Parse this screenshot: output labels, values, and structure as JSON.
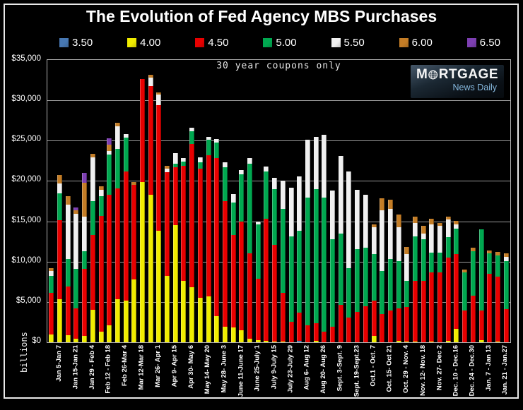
{
  "header": {
    "title": "The Evolution of Fed Agency MBS Purchases"
  },
  "plot": {
    "annotation": "30 year coupons only",
    "ylabel": "billions"
  },
  "logo": {
    "word_pre": "M",
    "word_post": "RTGAGE",
    "subtitle": "News Daily"
  },
  "chart_data": {
    "type": "bar",
    "stacked": true,
    "title": "The Evolution of Fed Agency MBS Purchases",
    "annotation": "30 year coupons only",
    "ylabel": "billions",
    "ylim": [
      0,
      35000
    ],
    "ytick_step": 5000,
    "ytick_labels": [
      "$0",
      "$5,000",
      "$10,000",
      "$15,000",
      "$20,000",
      "$25,000",
      "$30,000",
      "$35,000"
    ],
    "grid": "horizontal",
    "legend_position": "top",
    "series_keys": [
      "3.50",
      "4.00",
      "4.50",
      "5.00",
      "5.50",
      "6.00",
      "6.50"
    ],
    "series_colors": [
      "#4778b3",
      "#f0ec00",
      "#e80000",
      "#00a850",
      "#f0f0f0",
      "#c47d26",
      "#7d3fb2"
    ],
    "bars": [
      {
        "label": "Jan 5-Jan 7",
        "values": [
          0,
          1000,
          5100,
          2100,
          600,
          400,
          0
        ]
      },
      {
        "label": "",
        "values": [
          0,
          5300,
          9800,
          3400,
          1200,
          1000,
          0
        ]
      },
      {
        "label": "Jan 15-Jan 21",
        "values": [
          0,
          900,
          6000,
          3400,
          6800,
          1000,
          0
        ]
      },
      {
        "label": "",
        "values": [
          0,
          400,
          3800,
          4900,
          6800,
          450,
          400
        ]
      },
      {
        "label": "Jan 29 - Feb 4",
        "values": [
          0,
          800,
          8300,
          2200,
          4300,
          4200,
          1200
        ]
      },
      {
        "label": "",
        "values": [
          0,
          4000,
          9300,
          4200,
          5400,
          500,
          0
        ]
      },
      {
        "label": "Feb 12 - Feb 18",
        "values": [
          0,
          1300,
          14400,
          2400,
          800,
          400,
          0
        ]
      },
      {
        "label": "",
        "values": [
          0,
          2100,
          16200,
          5000,
          400,
          800,
          800
        ]
      },
      {
        "label": "Feb 26-Mar 4",
        "values": [
          0,
          5300,
          13800,
          4900,
          2800,
          400,
          0
        ]
      },
      {
        "label": "",
        "values": [
          0,
          5200,
          16000,
          4200,
          450,
          0,
          0
        ]
      },
      {
        "label": "Mar 12-Mar 18",
        "values": [
          0,
          7800,
          11700,
          0,
          0,
          400,
          0
        ]
      },
      {
        "label": "",
        "values": [
          0,
          19900,
          12700,
          0,
          0,
          0,
          0
        ]
      },
      {
        "label": "Mar 26- Apr 1",
        "values": [
          0,
          18300,
          13500,
          0,
          1000,
          350,
          0
        ]
      },
      {
        "label": "",
        "values": [
          0,
          13800,
          15600,
          0,
          1300,
          300,
          0
        ]
      },
      {
        "label": "Apr 9- Apr 15",
        "values": [
          0,
          8200,
          12900,
          0,
          400,
          400,
          0
        ]
      },
      {
        "label": "",
        "values": [
          0,
          14500,
          7200,
          400,
          1350,
          0,
          0
        ]
      },
      {
        "label": "Apr 30- May 6",
        "values": [
          0,
          7600,
          14300,
          500,
          400,
          0,
          0
        ]
      },
      {
        "label": "",
        "values": [
          0,
          6800,
          17800,
          1600,
          400,
          0,
          0
        ]
      },
      {
        "label": "May 14- May 20",
        "values": [
          0,
          5500,
          16000,
          800,
          600,
          0,
          0
        ]
      },
      {
        "label": "",
        "values": [
          0,
          5700,
          17500,
          1900,
          400,
          0,
          0
        ]
      },
      {
        "label": "May 28- June 3",
        "values": [
          0,
          3200,
          19600,
          2000,
          400,
          0,
          0
        ]
      },
      {
        "label": "",
        "values": [
          0,
          1900,
          15600,
          4200,
          650,
          0,
          0
        ]
      },
      {
        "label": "June 11-June 17",
        "values": [
          0,
          1800,
          11500,
          4000,
          1100,
          0,
          0
        ]
      },
      {
        "label": "",
        "values": [
          0,
          1500,
          13500,
          5850,
          500,
          0,
          0
        ]
      },
      {
        "label": "June 25-July 1",
        "values": [
          0,
          400,
          10600,
          11150,
          650,
          0,
          0
        ]
      },
      {
        "label": "",
        "values": [
          0,
          250,
          7600,
          6800,
          350,
          0,
          0
        ]
      },
      {
        "label": "July 9-July 15",
        "values": [
          0,
          200,
          15100,
          5900,
          600,
          0,
          0
        ]
      },
      {
        "label": "",
        "values": [
          0,
          100,
          12000,
          6900,
          1350,
          0,
          0
        ]
      },
      {
        "label": "July 23-July 29",
        "values": [
          0,
          100,
          6000,
          10400,
          3550,
          0,
          0
        ]
      },
      {
        "label": "",
        "values": [
          0,
          0,
          2500,
          10650,
          6000,
          0,
          0
        ]
      },
      {
        "label": "Aug 6- Aug 12",
        "values": [
          150,
          0,
          3500,
          10200,
          6700,
          0,
          0
        ]
      },
      {
        "label": "",
        "values": [
          0,
          0,
          2100,
          15800,
          7200,
          0,
          0
        ]
      },
      {
        "label": "Aug 20- Aug 26",
        "values": [
          0,
          200,
          2200,
          16600,
          6500,
          0,
          0
        ]
      },
      {
        "label": "",
        "values": [
          0,
          0,
          1350,
          16600,
          7800,
          0,
          0
        ]
      },
      {
        "label": "Sept. 3-Sept. 9",
        "values": [
          0,
          0,
          1900,
          10900,
          6050,
          0,
          0
        ]
      },
      {
        "label": "",
        "values": [
          0,
          0,
          4600,
          8900,
          9600,
          0,
          0
        ]
      },
      {
        "label": "Sept. 19-Sept.23",
        "values": [
          0,
          0,
          3050,
          6100,
          12000,
          0,
          0
        ]
      },
      {
        "label": "",
        "values": [
          0,
          0,
          3750,
          7800,
          7350,
          0,
          0
        ]
      },
      {
        "label": "Oct.1 - Oct. 7",
        "values": [
          0,
          0,
          4500,
          7200,
          6600,
          0,
          0
        ]
      },
      {
        "label": "",
        "values": [
          0,
          800,
          4400,
          5700,
          3350,
          350,
          0
        ]
      },
      {
        "label": "Oct. 15- Oct 21",
        "values": [
          0,
          0,
          3500,
          5350,
          7500,
          1500,
          0
        ]
      },
      {
        "label": "",
        "values": [
          0,
          0,
          3900,
          6400,
          6200,
          1200,
          0
        ]
      },
      {
        "label": "Oct. 29 - Nov. 4",
        "values": [
          0,
          200,
          4000,
          5900,
          4200,
          1500,
          0
        ]
      },
      {
        "label": "",
        "values": [
          0,
          100,
          4300,
          3200,
          3300,
          900,
          0
        ]
      },
      {
        "label": "Nov. 12- Nov. 18",
        "values": [
          0,
          100,
          7500,
          5500,
          1650,
          800,
          0
        ]
      },
      {
        "label": "",
        "values": [
          0,
          0,
          7600,
          5200,
          700,
          900,
          0
        ]
      },
      {
        "label": "Nov. 27- Dec 2",
        "values": [
          0,
          100,
          8600,
          2400,
          3550,
          700,
          0
        ]
      },
      {
        "label": "",
        "values": [
          0,
          0,
          8700,
          2400,
          3300,
          350,
          0
        ]
      },
      {
        "label": "Dec. 10 - Dec.16",
        "values": [
          0,
          200,
          10300,
          2500,
          2200,
          400,
          0
        ]
      },
      {
        "label": "",
        "values": [
          0,
          1700,
          9200,
          3200,
          550,
          400,
          0
        ]
      },
      {
        "label": "Dec. 24 - Dec.30",
        "values": [
          0,
          0,
          3900,
          4800,
          0,
          350,
          0
        ]
      },
      {
        "label": "",
        "values": [
          0,
          0,
          5800,
          5500,
          0,
          400,
          0
        ]
      },
      {
        "label": "Jan. 7 - Jan 13",
        "values": [
          0,
          300,
          3600,
          10100,
          0,
          0,
          0
        ]
      },
      {
        "label": "",
        "values": [
          0,
          0,
          8500,
          2500,
          0,
          400,
          0
        ]
      },
      {
        "label": "Jan. 21 - Jan.27",
        "values": [
          0,
          100,
          8000,
          2700,
          0,
          400,
          0
        ]
      },
      {
        "label": "",
        "values": [
          0,
          0,
          4100,
          6000,
          500,
          400,
          0
        ]
      }
    ]
  }
}
